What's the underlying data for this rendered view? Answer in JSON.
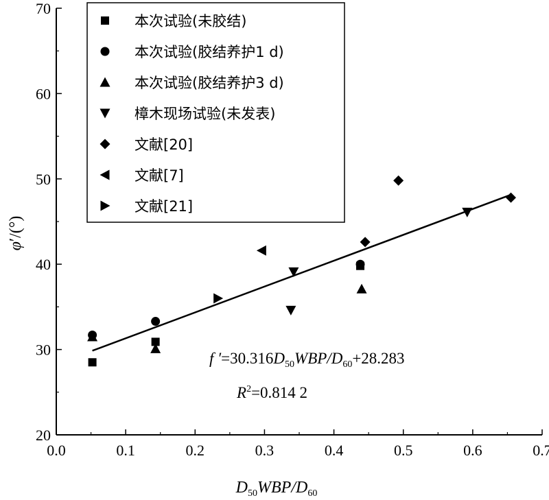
{
  "chart_data": {
    "type": "scatter",
    "xlabel": "D50WBP/D60",
    "ylabel": "φ′/(°)",
    "xlim": [
      0.0,
      0.7
    ],
    "ylim": [
      20,
      70
    ],
    "xticks": [
      "0.0",
      "0.1",
      "0.2",
      "0.3",
      "0.4",
      "0.5",
      "0.6",
      "0.7"
    ],
    "yticks": [
      "20",
      "30",
      "40",
      "50",
      "60",
      "70"
    ],
    "grid": false,
    "legend_position": "top-left",
    "series": [
      {
        "name": "本次试验(未胶结)",
        "marker": "square",
        "points": [
          [
            0.052,
            28.5
          ],
          [
            0.143,
            30.9
          ],
          [
            0.438,
            39.8
          ]
        ]
      },
      {
        "name": "本次试验(胶结养护1 d)",
        "marker": "circle",
        "points": [
          [
            0.052,
            31.7
          ],
          [
            0.143,
            33.3
          ],
          [
            0.438,
            40.0
          ]
        ]
      },
      {
        "name": "本次试验(胶结养护3 d)",
        "marker": "triangle-up",
        "points": [
          [
            0.052,
            31.5
          ],
          [
            0.143,
            30.1
          ],
          [
            0.44,
            37.1
          ]
        ]
      },
      {
        "name": "樟木现场试验(未发表)",
        "marker": "triangle-down",
        "points": [
          [
            0.338,
            34.6
          ],
          [
            0.342,
            39.1
          ],
          [
            0.592,
            46.1
          ]
        ]
      },
      {
        "name": "文献[20]",
        "marker": "diamond",
        "points": [
          [
            0.445,
            42.6
          ],
          [
            0.493,
            49.8
          ],
          [
            0.655,
            47.8
          ]
        ]
      },
      {
        "name": "文献[7]",
        "marker": "triangle-left",
        "points": [
          [
            0.296,
            41.6
          ]
        ]
      },
      {
        "name": "文献[21]",
        "marker": "triangle-right",
        "points": [
          [
            0.233,
            36.0
          ]
        ]
      }
    ],
    "fit_line": {
      "slope": 30.316,
      "intercept": 28.283,
      "x_range": [
        0.052,
        0.655
      ]
    },
    "annotations": {
      "equation": {
        "prefix": "f ′",
        "eq1": "=30.316",
        "D": "D",
        "sub50": "50",
        "mid": "WBP/",
        "sub60": "60",
        "suffix": "+28.283"
      },
      "r2": {
        "R": "R",
        "sup": "2",
        "value": "=0.814 2"
      }
    }
  }
}
